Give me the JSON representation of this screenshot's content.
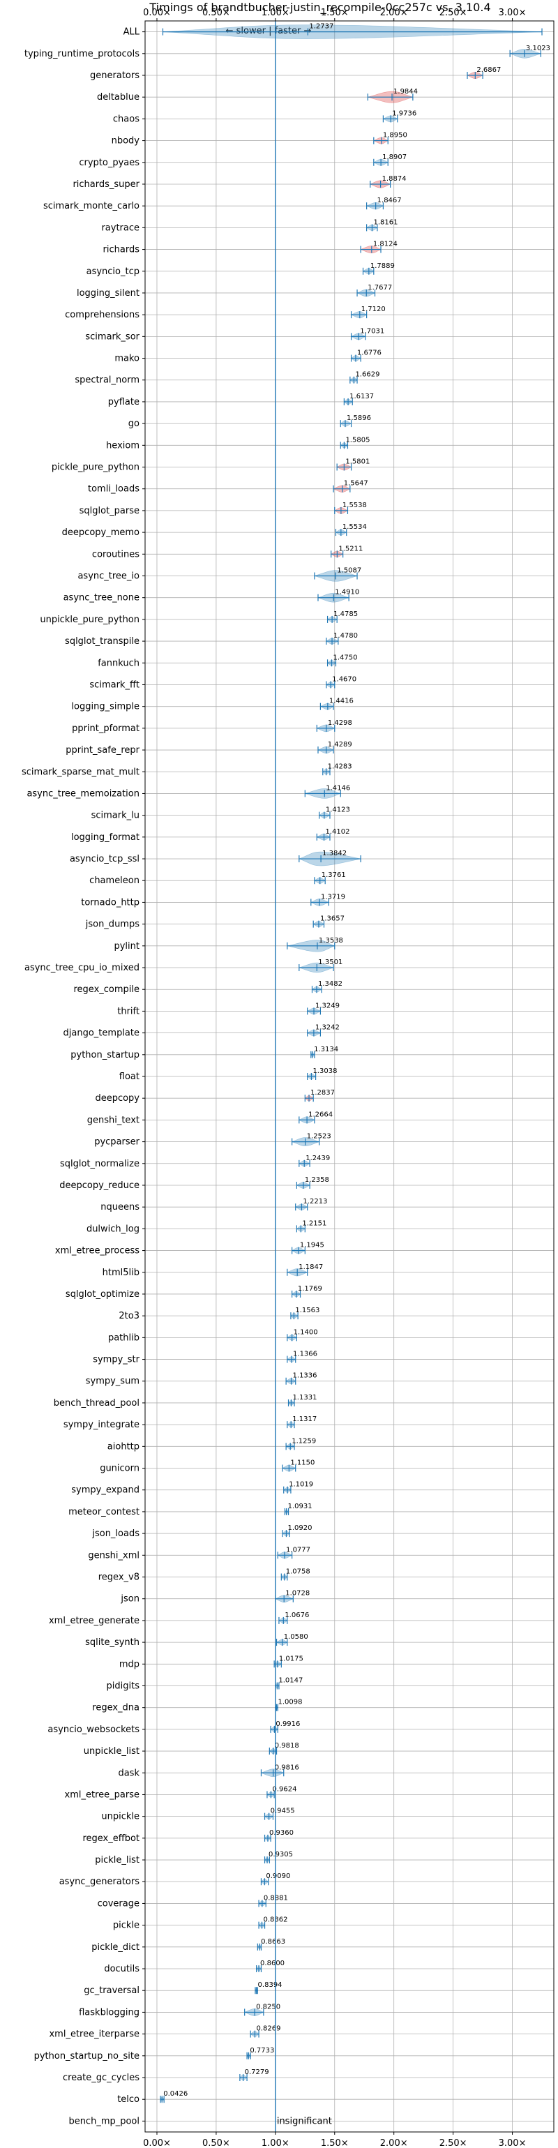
{
  "chart_data": {
    "type": "violin",
    "title": "Timings of brandtbucher-justin_recompile-0cc257c vs. 3.10.4",
    "direction_note": "← slower | faster →",
    "insignificant_note": "insignificant",
    "xlim": [
      -0.1,
      3.35
    ],
    "xticks": [
      "0.00×",
      "0.50×",
      "1.00×",
      "1.50×",
      "2.00×",
      "2.50×",
      "3.00×"
    ],
    "xtick_values": [
      0,
      0.5,
      1.0,
      1.5,
      2.0,
      2.5,
      3.0
    ],
    "grid": true,
    "reference_line": 1.0,
    "colors": {
      "normal": "#1f77b4",
      "highlight": "#d62728",
      "line": "#1f77b4"
    },
    "benchmarks": [
      {
        "name": "ALL",
        "value": 1.2737,
        "label": "1.2737",
        "lo": 0.05,
        "hi": 3.25,
        "color": "normal"
      },
      {
        "name": "typing_runtime_protocols",
        "value": 3.1023,
        "label": "3.1023",
        "lo": 2.98,
        "hi": 3.24,
        "color": "normal"
      },
      {
        "name": "generators",
        "value": 2.6867,
        "label": "2.6867",
        "lo": 2.62,
        "hi": 2.75,
        "color": "highlight"
      },
      {
        "name": "deltablue",
        "value": 1.9844,
        "label": "1.9844",
        "lo": 1.78,
        "hi": 2.16,
        "color": "highlight"
      },
      {
        "name": "chaos",
        "value": 1.9736,
        "label": "1.9736",
        "lo": 1.91,
        "hi": 2.03,
        "color": "normal"
      },
      {
        "name": "nbody",
        "value": 1.895,
        "label": "1.8950",
        "lo": 1.83,
        "hi": 1.95,
        "color": "highlight"
      },
      {
        "name": "crypto_pyaes",
        "value": 1.8907,
        "label": "1.8907",
        "lo": 1.83,
        "hi": 1.95,
        "color": "normal"
      },
      {
        "name": "richards_super",
        "value": 1.8874,
        "label": "1.8874",
        "lo": 1.8,
        "hi": 1.97,
        "color": "highlight"
      },
      {
        "name": "scimark_monte_carlo",
        "value": 1.8467,
        "label": "1.8467",
        "lo": 1.77,
        "hi": 1.91,
        "color": "normal"
      },
      {
        "name": "raytrace",
        "value": 1.8161,
        "label": "1.8161",
        "lo": 1.77,
        "hi": 1.86,
        "color": "normal"
      },
      {
        "name": "richards",
        "value": 1.8124,
        "label": "1.8124",
        "lo": 1.72,
        "hi": 1.89,
        "color": "highlight"
      },
      {
        "name": "asyncio_tcp",
        "value": 1.7889,
        "label": "1.7889",
        "lo": 1.74,
        "hi": 1.83,
        "color": "normal"
      },
      {
        "name": "logging_silent",
        "value": 1.7677,
        "label": "1.7677",
        "lo": 1.69,
        "hi": 1.84,
        "color": "normal"
      },
      {
        "name": "comprehensions",
        "value": 1.712,
        "label": "1.7120",
        "lo": 1.64,
        "hi": 1.77,
        "color": "normal"
      },
      {
        "name": "scimark_sor",
        "value": 1.7031,
        "label": "1.7031",
        "lo": 1.64,
        "hi": 1.76,
        "color": "normal"
      },
      {
        "name": "mako",
        "value": 1.6776,
        "label": "1.6776",
        "lo": 1.64,
        "hi": 1.72,
        "color": "normal"
      },
      {
        "name": "spectral_norm",
        "value": 1.6629,
        "label": "1.6629",
        "lo": 1.63,
        "hi": 1.69,
        "color": "normal"
      },
      {
        "name": "pyflate",
        "value": 1.6137,
        "label": "1.6137",
        "lo": 1.58,
        "hi": 1.65,
        "color": "normal"
      },
      {
        "name": "go",
        "value": 1.5896,
        "label": "1.5896",
        "lo": 1.55,
        "hi": 1.64,
        "color": "normal"
      },
      {
        "name": "hexiom",
        "value": 1.5805,
        "label": "1.5805",
        "lo": 1.55,
        "hi": 1.61,
        "color": "normal"
      },
      {
        "name": "pickle_pure_python",
        "value": 1.5801,
        "label": "1.5801",
        "lo": 1.52,
        "hi": 1.64,
        "color": "highlight"
      },
      {
        "name": "tomli_loads",
        "value": 1.5647,
        "label": "1.5647",
        "lo": 1.49,
        "hi": 1.63,
        "color": "highlight"
      },
      {
        "name": "sqlglot_parse",
        "value": 1.5538,
        "label": "1.5538",
        "lo": 1.5,
        "hi": 1.61,
        "color": "highlight"
      },
      {
        "name": "deepcopy_memo",
        "value": 1.5534,
        "label": "1.5534",
        "lo": 1.51,
        "hi": 1.6,
        "color": "normal"
      },
      {
        "name": "coroutines",
        "value": 1.5211,
        "label": "1.5211",
        "lo": 1.47,
        "hi": 1.57,
        "color": "highlight"
      },
      {
        "name": "async_tree_io",
        "value": 1.5087,
        "label": "1.5087",
        "lo": 1.33,
        "hi": 1.69,
        "color": "normal"
      },
      {
        "name": "async_tree_none",
        "value": 1.491,
        "label": "1.4910",
        "lo": 1.36,
        "hi": 1.62,
        "color": "normal"
      },
      {
        "name": "unpickle_pure_python",
        "value": 1.4785,
        "label": "1.4785",
        "lo": 1.44,
        "hi": 1.52,
        "color": "normal"
      },
      {
        "name": "sqlglot_transpile",
        "value": 1.478,
        "label": "1.4780",
        "lo": 1.43,
        "hi": 1.53,
        "color": "normal"
      },
      {
        "name": "fannkuch",
        "value": 1.475,
        "label": "1.4750",
        "lo": 1.44,
        "hi": 1.51,
        "color": "normal"
      },
      {
        "name": "scimark_fft",
        "value": 1.467,
        "label": "1.4670",
        "lo": 1.43,
        "hi": 1.5,
        "color": "normal"
      },
      {
        "name": "logging_simple",
        "value": 1.4416,
        "label": "1.4416",
        "lo": 1.38,
        "hi": 1.49,
        "color": "normal"
      },
      {
        "name": "pprint_pformat",
        "value": 1.4298,
        "label": "1.4298",
        "lo": 1.35,
        "hi": 1.5,
        "color": "normal"
      },
      {
        "name": "pprint_safe_repr",
        "value": 1.4289,
        "label": "1.4289",
        "lo": 1.36,
        "hi": 1.49,
        "color": "normal"
      },
      {
        "name": "scimark_sparse_mat_mult",
        "value": 1.4283,
        "label": "1.4283",
        "lo": 1.4,
        "hi": 1.46,
        "color": "normal"
      },
      {
        "name": "async_tree_memoization",
        "value": 1.4146,
        "label": "1.4146",
        "lo": 1.25,
        "hi": 1.55,
        "color": "normal"
      },
      {
        "name": "scimark_lu",
        "value": 1.4123,
        "label": "1.4123",
        "lo": 1.37,
        "hi": 1.46,
        "color": "normal"
      },
      {
        "name": "logging_format",
        "value": 1.4102,
        "label": "1.4102",
        "lo": 1.35,
        "hi": 1.46,
        "color": "normal"
      },
      {
        "name": "asyncio_tcp_ssl",
        "value": 1.3842,
        "label": "1.3842",
        "lo": 1.2,
        "hi": 1.72,
        "color": "normal"
      },
      {
        "name": "chameleon",
        "value": 1.3761,
        "label": "1.3761",
        "lo": 1.33,
        "hi": 1.42,
        "color": "normal"
      },
      {
        "name": "tornado_http",
        "value": 1.3719,
        "label": "1.3719",
        "lo": 1.3,
        "hi": 1.45,
        "color": "normal"
      },
      {
        "name": "json_dumps",
        "value": 1.3657,
        "label": "1.3657",
        "lo": 1.32,
        "hi": 1.41,
        "color": "normal"
      },
      {
        "name": "pylint",
        "value": 1.3538,
        "label": "1.3538",
        "lo": 1.1,
        "hi": 1.5,
        "color": "normal"
      },
      {
        "name": "async_tree_cpu_io_mixed",
        "value": 1.3501,
        "label": "1.3501",
        "lo": 1.2,
        "hi": 1.49,
        "color": "normal"
      },
      {
        "name": "regex_compile",
        "value": 1.3482,
        "label": "1.3482",
        "lo": 1.31,
        "hi": 1.39,
        "color": "normal"
      },
      {
        "name": "thrift",
        "value": 1.3249,
        "label": "1.3249",
        "lo": 1.27,
        "hi": 1.38,
        "color": "normal"
      },
      {
        "name": "django_template",
        "value": 1.3242,
        "label": "1.3242",
        "lo": 1.27,
        "hi": 1.38,
        "color": "normal"
      },
      {
        "name": "python_startup",
        "value": 1.3134,
        "label": "1.3134",
        "lo": 1.3,
        "hi": 1.33,
        "color": "normal"
      },
      {
        "name": "float",
        "value": 1.3038,
        "label": "1.3038",
        "lo": 1.27,
        "hi": 1.34,
        "color": "normal"
      },
      {
        "name": "deepcopy",
        "value": 1.2837,
        "label": "1.2837",
        "lo": 1.25,
        "hi": 1.32,
        "color": "highlight"
      },
      {
        "name": "genshi_text",
        "value": 1.2664,
        "label": "1.2664",
        "lo": 1.2,
        "hi": 1.33,
        "color": "normal"
      },
      {
        "name": "pycparser",
        "value": 1.2523,
        "label": "1.2523",
        "lo": 1.14,
        "hi": 1.37,
        "color": "normal"
      },
      {
        "name": "sqlglot_normalize",
        "value": 1.2439,
        "label": "1.2439",
        "lo": 1.2,
        "hi": 1.29,
        "color": "normal"
      },
      {
        "name": "deepcopy_reduce",
        "value": 1.2358,
        "label": "1.2358",
        "lo": 1.18,
        "hi": 1.29,
        "color": "normal"
      },
      {
        "name": "nqueens",
        "value": 1.2213,
        "label": "1.2213",
        "lo": 1.17,
        "hi": 1.27,
        "color": "normal"
      },
      {
        "name": "dulwich_log",
        "value": 1.2151,
        "label": "1.2151",
        "lo": 1.18,
        "hi": 1.25,
        "color": "normal"
      },
      {
        "name": "xml_etree_process",
        "value": 1.1945,
        "label": "1.1945",
        "lo": 1.14,
        "hi": 1.25,
        "color": "normal"
      },
      {
        "name": "html5lib",
        "value": 1.1847,
        "label": "1.1847",
        "lo": 1.1,
        "hi": 1.27,
        "color": "normal"
      },
      {
        "name": "sqlglot_optimize",
        "value": 1.1769,
        "label": "1.1769",
        "lo": 1.14,
        "hi": 1.21,
        "color": "normal"
      },
      {
        "name": "2to3",
        "value": 1.1563,
        "label": "1.1563",
        "lo": 1.13,
        "hi": 1.19,
        "color": "normal"
      },
      {
        "name": "pathlib",
        "value": 1.14,
        "label": "1.1400",
        "lo": 1.1,
        "hi": 1.18,
        "color": "normal"
      },
      {
        "name": "sympy_str",
        "value": 1.1366,
        "label": "1.1366",
        "lo": 1.1,
        "hi": 1.17,
        "color": "normal"
      },
      {
        "name": "sympy_sum",
        "value": 1.1336,
        "label": "1.1336",
        "lo": 1.09,
        "hi": 1.17,
        "color": "normal"
      },
      {
        "name": "bench_thread_pool",
        "value": 1.1331,
        "label": "1.1331",
        "lo": 1.11,
        "hi": 1.16,
        "color": "normal"
      },
      {
        "name": "sympy_integrate",
        "value": 1.1317,
        "label": "1.1317",
        "lo": 1.1,
        "hi": 1.16,
        "color": "normal"
      },
      {
        "name": "aiohttp",
        "value": 1.1259,
        "label": "1.1259",
        "lo": 1.09,
        "hi": 1.16,
        "color": "normal"
      },
      {
        "name": "gunicorn",
        "value": 1.115,
        "label": "1.1150",
        "lo": 1.06,
        "hi": 1.17,
        "color": "normal"
      },
      {
        "name": "sympy_expand",
        "value": 1.1019,
        "label": "1.1019",
        "lo": 1.07,
        "hi": 1.13,
        "color": "normal"
      },
      {
        "name": "meteor_contest",
        "value": 1.0931,
        "label": "1.0931",
        "lo": 1.08,
        "hi": 1.11,
        "color": "normal"
      },
      {
        "name": "json_loads",
        "value": 1.092,
        "label": "1.0920",
        "lo": 1.06,
        "hi": 1.12,
        "color": "normal"
      },
      {
        "name": "genshi_xml",
        "value": 1.0777,
        "label": "1.0777",
        "lo": 1.02,
        "hi": 1.14,
        "color": "normal"
      },
      {
        "name": "regex_v8",
        "value": 1.0758,
        "label": "1.0758",
        "lo": 1.05,
        "hi": 1.1,
        "color": "normal"
      },
      {
        "name": "json",
        "value": 1.0728,
        "label": "1.0728",
        "lo": 1.0,
        "hi": 1.15,
        "color": "normal"
      },
      {
        "name": "xml_etree_generate",
        "value": 1.0676,
        "label": "1.0676",
        "lo": 1.03,
        "hi": 1.1,
        "color": "normal"
      },
      {
        "name": "sqlite_synth",
        "value": 1.058,
        "label": "1.0580",
        "lo": 1.01,
        "hi": 1.1,
        "color": "normal"
      },
      {
        "name": "mdp",
        "value": 1.0175,
        "label": "1.0175",
        "lo": 0.99,
        "hi": 1.05,
        "color": "normal"
      },
      {
        "name": "pidigits",
        "value": 1.0147,
        "label": "1.0147",
        "lo": 1.0,
        "hi": 1.03,
        "color": "normal"
      },
      {
        "name": "regex_dna",
        "value": 1.0098,
        "label": "1.0098",
        "lo": 1.0,
        "hi": 1.02,
        "color": "normal"
      },
      {
        "name": "asyncio_websockets",
        "value": 0.9916,
        "label": "0.9916",
        "lo": 0.96,
        "hi": 1.02,
        "color": "normal"
      },
      {
        "name": "unpickle_list",
        "value": 0.9818,
        "label": "0.9818",
        "lo": 0.95,
        "hi": 1.01,
        "color": "normal"
      },
      {
        "name": "dask",
        "value": 0.9816,
        "label": "0.9816",
        "lo": 0.88,
        "hi": 1.07,
        "color": "normal"
      },
      {
        "name": "xml_etree_parse",
        "value": 0.9624,
        "label": "0.9624",
        "lo": 0.93,
        "hi": 0.99,
        "color": "normal"
      },
      {
        "name": "unpickle",
        "value": 0.9455,
        "label": "0.9455",
        "lo": 0.91,
        "hi": 0.98,
        "color": "normal"
      },
      {
        "name": "regex_effbot",
        "value": 0.936,
        "label": "0.9360",
        "lo": 0.91,
        "hi": 0.96,
        "color": "normal"
      },
      {
        "name": "pickle_list",
        "value": 0.9305,
        "label": "0.9305",
        "lo": 0.91,
        "hi": 0.95,
        "color": "normal"
      },
      {
        "name": "async_generators",
        "value": 0.909,
        "label": "0.9090",
        "lo": 0.88,
        "hi": 0.94,
        "color": "normal"
      },
      {
        "name": "coverage",
        "value": 0.8881,
        "label": "0.8881",
        "lo": 0.86,
        "hi": 0.92,
        "color": "normal"
      },
      {
        "name": "pickle",
        "value": 0.8862,
        "label": "0.8862",
        "lo": 0.86,
        "hi": 0.91,
        "color": "normal"
      },
      {
        "name": "pickle_dict",
        "value": 0.8663,
        "label": "0.8663",
        "lo": 0.85,
        "hi": 0.88,
        "color": "normal"
      },
      {
        "name": "docutils",
        "value": 0.86,
        "label": "0.8600",
        "lo": 0.84,
        "hi": 0.88,
        "color": "normal"
      },
      {
        "name": "gc_traversal",
        "value": 0.8394,
        "label": "0.8394",
        "lo": 0.83,
        "hi": 0.85,
        "color": "normal"
      },
      {
        "name": "flaskblogging",
        "value": 0.825,
        "label": "0.8250",
        "lo": 0.74,
        "hi": 0.9,
        "color": "normal"
      },
      {
        "name": "xml_etree_iterparse",
        "value": 0.8269,
        "label": "0.8269",
        "lo": 0.79,
        "hi": 0.86,
        "color": "normal"
      },
      {
        "name": "python_startup_no_site",
        "value": 0.7733,
        "label": "0.7733",
        "lo": 0.76,
        "hi": 0.79,
        "color": "normal"
      },
      {
        "name": "create_gc_cycles",
        "value": 0.7279,
        "label": "0.7279",
        "lo": 0.7,
        "hi": 0.76,
        "color": "normal"
      },
      {
        "name": "telco",
        "value": 0.0426,
        "label": "0.0426",
        "lo": 0.03,
        "hi": 0.06,
        "color": "normal"
      },
      {
        "name": "bench_mp_pool",
        "value": 1.0,
        "label": "",
        "lo": 1.0,
        "hi": 1.0,
        "color": "normal",
        "insignificant": true
      }
    ]
  }
}
